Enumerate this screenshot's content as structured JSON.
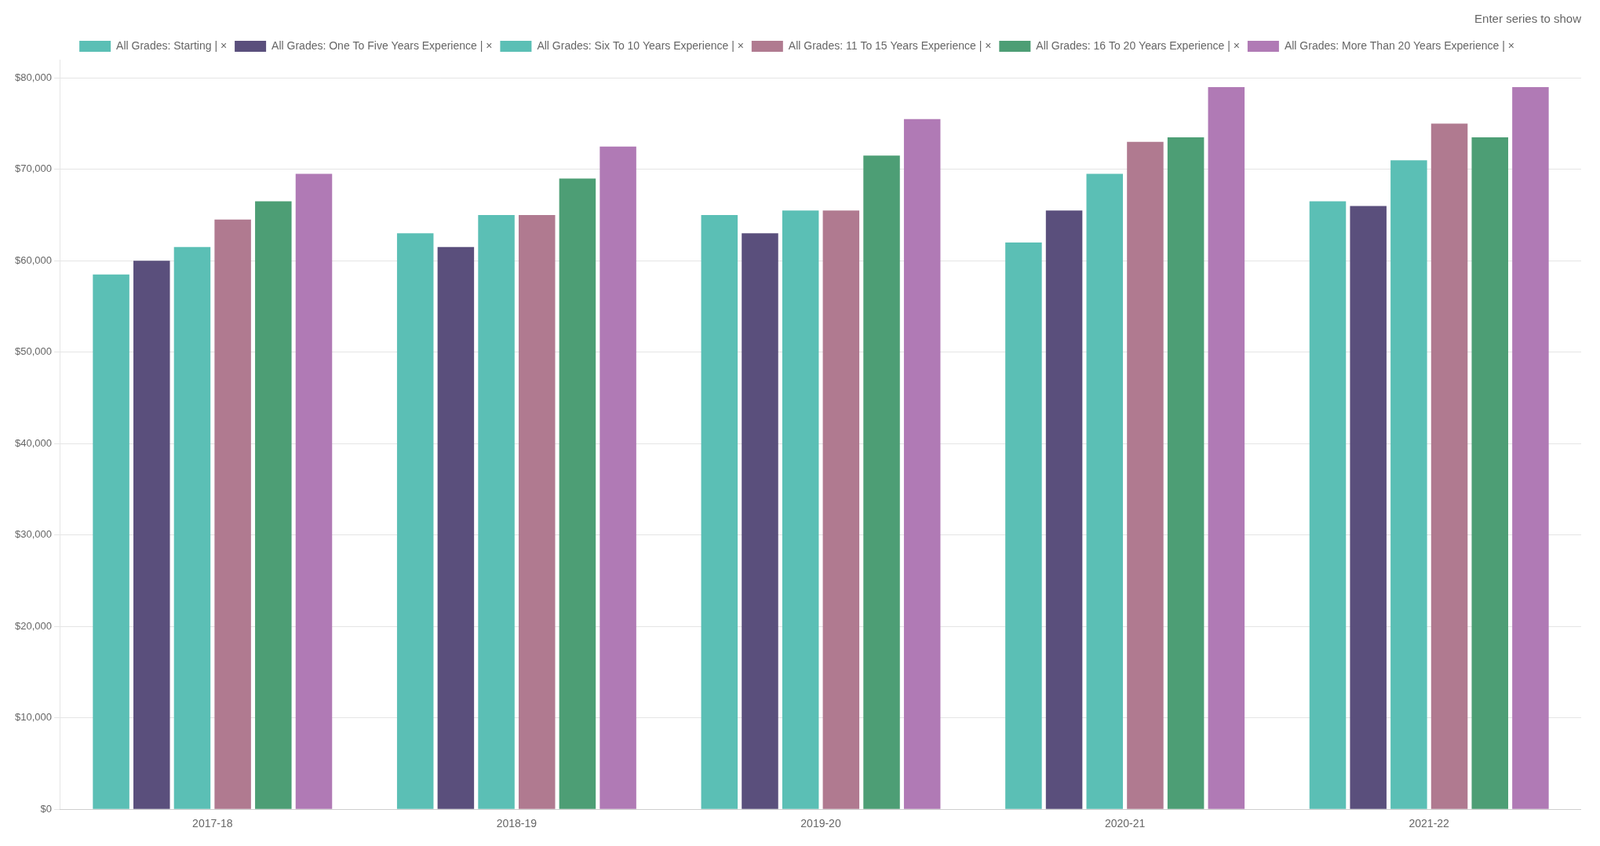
{
  "chart_data": {
    "type": "bar",
    "subtitle": "Enter series to show",
    "categories": [
      "2017-18",
      "2018-19",
      "2019-20",
      "2020-21",
      "2021-22"
    ],
    "series": [
      {
        "name": "All Grades: Starting | ×",
        "color": "#5bbfb5",
        "values": [
          58500,
          63000,
          65000,
          62000,
          66500
        ]
      },
      {
        "name": "All Grades: One To Five Years Experience | ×",
        "color": "#5a4f7c",
        "values": [
          60000,
          61500,
          63000,
          65500,
          66000
        ]
      },
      {
        "name": "All Grades: Six To 10 Years Experience | ×",
        "color": "#5bbfb5",
        "values": [
          61500,
          65000,
          65500,
          69500,
          71000
        ]
      },
      {
        "name": "All Grades: 11 To 15 Years Experience | ×",
        "color": "#b07a90",
        "values": [
          64500,
          65000,
          65500,
          73000,
          75000
        ]
      },
      {
        "name": "All Grades: 16 To 20 Years Experience | ×",
        "color": "#4d9e75",
        "values": [
          66500,
          69000,
          71500,
          73500,
          73500
        ]
      },
      {
        "name": "All Grades: More Than 20 Years Experience | ×",
        "color": "#b07ab5",
        "values": [
          69500,
          72500,
          75500,
          79000,
          79000
        ]
      }
    ],
    "ylim": [
      0,
      82000
    ],
    "yticks": [
      {
        "value": 0,
        "label": "$0"
      },
      {
        "value": 10000,
        "label": "$10,000"
      },
      {
        "value": 20000,
        "label": "$20,000"
      },
      {
        "value": 30000,
        "label": "$30,000"
      },
      {
        "value": 40000,
        "label": "$40,000"
      },
      {
        "value": 50000,
        "label": "$50,000"
      },
      {
        "value": 60000,
        "label": "$60,000"
      },
      {
        "value": 70000,
        "label": "$70,000"
      },
      {
        "value": 80000,
        "label": "$80,000"
      }
    ],
    "grid": true,
    "legend": "top"
  }
}
